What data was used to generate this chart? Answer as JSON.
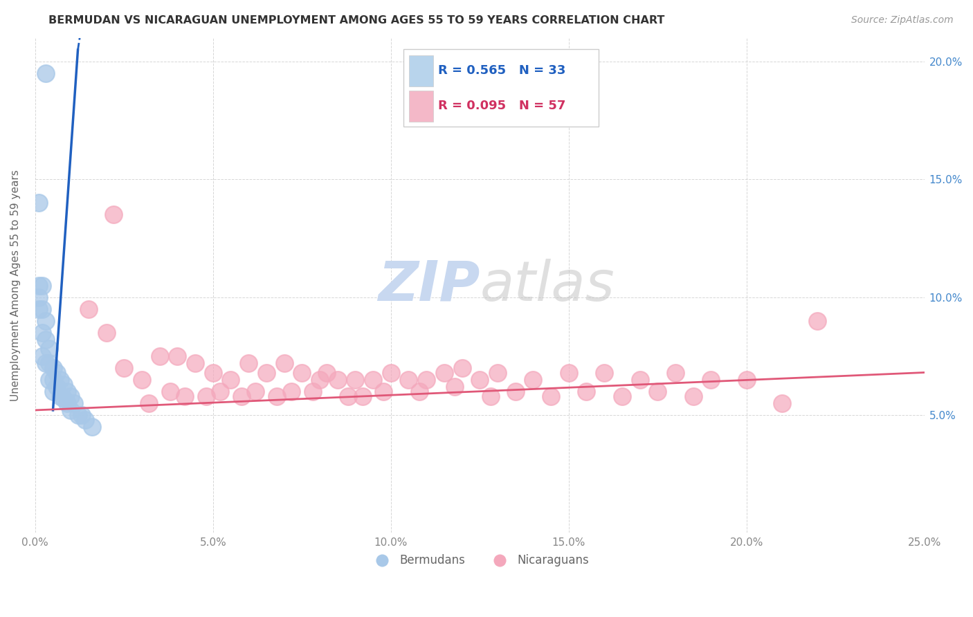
{
  "title": "BERMUDAN VS NICARAGUAN UNEMPLOYMENT AMONG AGES 55 TO 59 YEARS CORRELATION CHART",
  "source": "Source: ZipAtlas.com",
  "ylabel": "Unemployment Among Ages 55 to 59 years",
  "xlim": [
    0.0,
    0.25
  ],
  "ylim": [
    0.0,
    0.21
  ],
  "xticks": [
    0.0,
    0.05,
    0.1,
    0.15,
    0.2,
    0.25
  ],
  "yticks": [
    0.05,
    0.1,
    0.15,
    0.2
  ],
  "xticklabels": [
    "0.0%",
    "5.0%",
    "10.0%",
    "15.0%",
    "20.0%",
    "25.0%"
  ],
  "yticklabels_right": [
    "5.0%",
    "10.0%",
    "15.0%",
    "20.0%"
  ],
  "bermudans_R": 0.565,
  "bermudans_N": 33,
  "nicaraguans_R": 0.095,
  "nicaraguans_N": 57,
  "bermudans_color": "#a8c8e8",
  "nicaraguans_color": "#f4a8bc",
  "blue_line_color": "#2060c0",
  "pink_line_color": "#e05878",
  "legend_box_color_blue": "#b8d4ec",
  "legend_box_color_pink": "#f4b8c8",
  "legend_text_color_blue": "#2060c0",
  "legend_text_color_pink": "#d03060",
  "right_axis_color": "#4488cc",
  "watermark_zip_color": "#c8d8f0",
  "watermark_atlas_color": "#c0c0c0",
  "background_color": "#ffffff",
  "grid_color": "#cccccc",
  "bermudans_x": [
    0.003,
    0.001,
    0.001,
    0.001,
    0.001,
    0.002,
    0.002,
    0.002,
    0.002,
    0.003,
    0.003,
    0.003,
    0.004,
    0.004,
    0.004,
    0.005,
    0.005,
    0.005,
    0.006,
    0.006,
    0.007,
    0.007,
    0.008,
    0.008,
    0.009,
    0.009,
    0.01,
    0.01,
    0.011,
    0.012,
    0.013,
    0.014,
    0.016
  ],
  "bermudans_y": [
    0.195,
    0.14,
    0.105,
    0.1,
    0.095,
    0.105,
    0.095,
    0.085,
    0.075,
    0.09,
    0.082,
    0.072,
    0.078,
    0.072,
    0.065,
    0.07,
    0.065,
    0.06,
    0.068,
    0.062,
    0.065,
    0.058,
    0.063,
    0.057,
    0.06,
    0.055,
    0.058,
    0.052,
    0.055,
    0.05,
    0.05,
    0.048,
    0.045
  ],
  "nicaraguans_x": [
    0.015,
    0.02,
    0.022,
    0.025,
    0.03,
    0.032,
    0.035,
    0.038,
    0.04,
    0.042,
    0.045,
    0.048,
    0.05,
    0.052,
    0.055,
    0.058,
    0.06,
    0.062,
    0.065,
    0.068,
    0.07,
    0.072,
    0.075,
    0.078,
    0.08,
    0.082,
    0.085,
    0.088,
    0.09,
    0.092,
    0.095,
    0.098,
    0.1,
    0.105,
    0.108,
    0.11,
    0.115,
    0.118,
    0.12,
    0.125,
    0.128,
    0.13,
    0.135,
    0.14,
    0.145,
    0.15,
    0.155,
    0.16,
    0.165,
    0.17,
    0.175,
    0.18,
    0.185,
    0.19,
    0.2,
    0.21,
    0.22
  ],
  "nicaraguans_y": [
    0.095,
    0.085,
    0.135,
    0.07,
    0.065,
    0.055,
    0.075,
    0.06,
    0.075,
    0.058,
    0.072,
    0.058,
    0.068,
    0.06,
    0.065,
    0.058,
    0.072,
    0.06,
    0.068,
    0.058,
    0.072,
    0.06,
    0.068,
    0.06,
    0.065,
    0.068,
    0.065,
    0.058,
    0.065,
    0.058,
    0.065,
    0.06,
    0.068,
    0.065,
    0.06,
    0.065,
    0.068,
    0.062,
    0.07,
    0.065,
    0.058,
    0.068,
    0.06,
    0.065,
    0.058,
    0.068,
    0.06,
    0.068,
    0.058,
    0.065,
    0.06,
    0.068,
    0.058,
    0.065,
    0.065,
    0.055,
    0.09
  ],
  "blue_trend_x": [
    0.005,
    0.012
  ],
  "blue_trend_y": [
    0.052,
    0.205
  ],
  "pink_trend_x": [
    0.0,
    0.25
  ],
  "pink_trend_y": [
    0.052,
    0.068
  ]
}
